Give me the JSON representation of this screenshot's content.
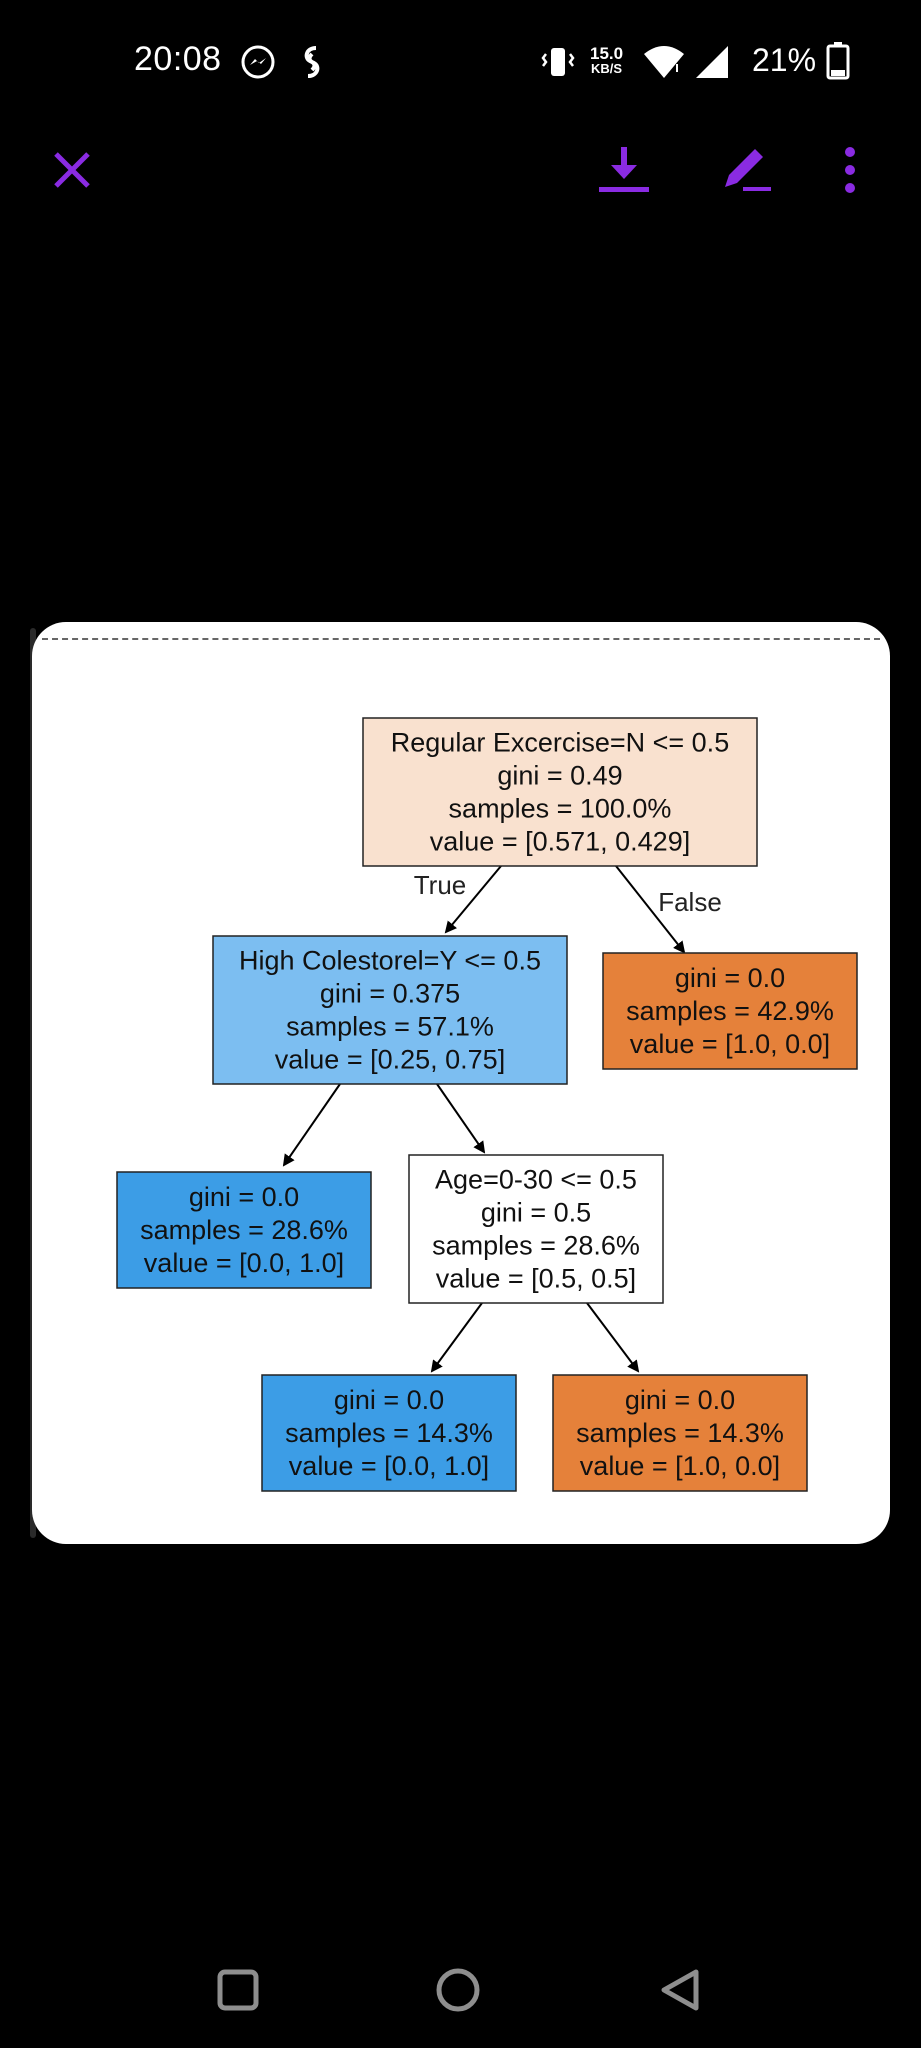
{
  "status_bar": {
    "time": "20:08",
    "net_speed_value": "15.0",
    "net_speed_unit": "KB/S",
    "battery": "21%",
    "icons": [
      "messenger-icon",
      "shazam-icon",
      "vibrate-icon",
      "wifi-icon",
      "signal-icon",
      "battery-icon"
    ]
  },
  "toolbar": {
    "accent": "#8a2be2",
    "icons": [
      "close-icon",
      "download-icon",
      "edit-icon",
      "more-icon"
    ]
  },
  "tree": {
    "root": {
      "lines": [
        "Regular Excercise=N <= 0.5",
        "gini = 0.49",
        "samples = 100.0%",
        "value = [0.571, 0.429]"
      ],
      "color": "#f9e1cf"
    },
    "edge_true": "True",
    "edge_false": "False",
    "left": {
      "lines": [
        "High Colestorel=Y <= 0.5",
        "gini = 0.375",
        "samples = 57.1%",
        "value = [0.25, 0.75]"
      ],
      "color": "#7cbef1"
    },
    "right": {
      "lines": [
        "gini = 0.0",
        "samples = 42.9%",
        "value = [1.0, 0.0]"
      ],
      "color": "#e5813a"
    },
    "left_left": {
      "lines": [
        "gini = 0.0",
        "samples = 28.6%",
        "value = [0.0, 1.0]"
      ],
      "color": "#3c9de6"
    },
    "left_right": {
      "lines": [
        "Age=0-30 <= 0.5",
        "gini = 0.5",
        "samples = 28.6%",
        "value = [0.5, 0.5]"
      ],
      "color": "#ffffff"
    },
    "lr_left": {
      "lines": [
        "gini = 0.0",
        "samples = 14.3%",
        "value = [0.0, 1.0]"
      ],
      "color": "#3c9de6"
    },
    "lr_right": {
      "lines": [
        "gini = 0.0",
        "samples = 14.3%",
        "value = [1.0, 0.0]"
      ],
      "color": "#e5813a"
    }
  },
  "nav": {
    "icons": [
      "recents-icon",
      "home-icon",
      "back-icon"
    ]
  }
}
